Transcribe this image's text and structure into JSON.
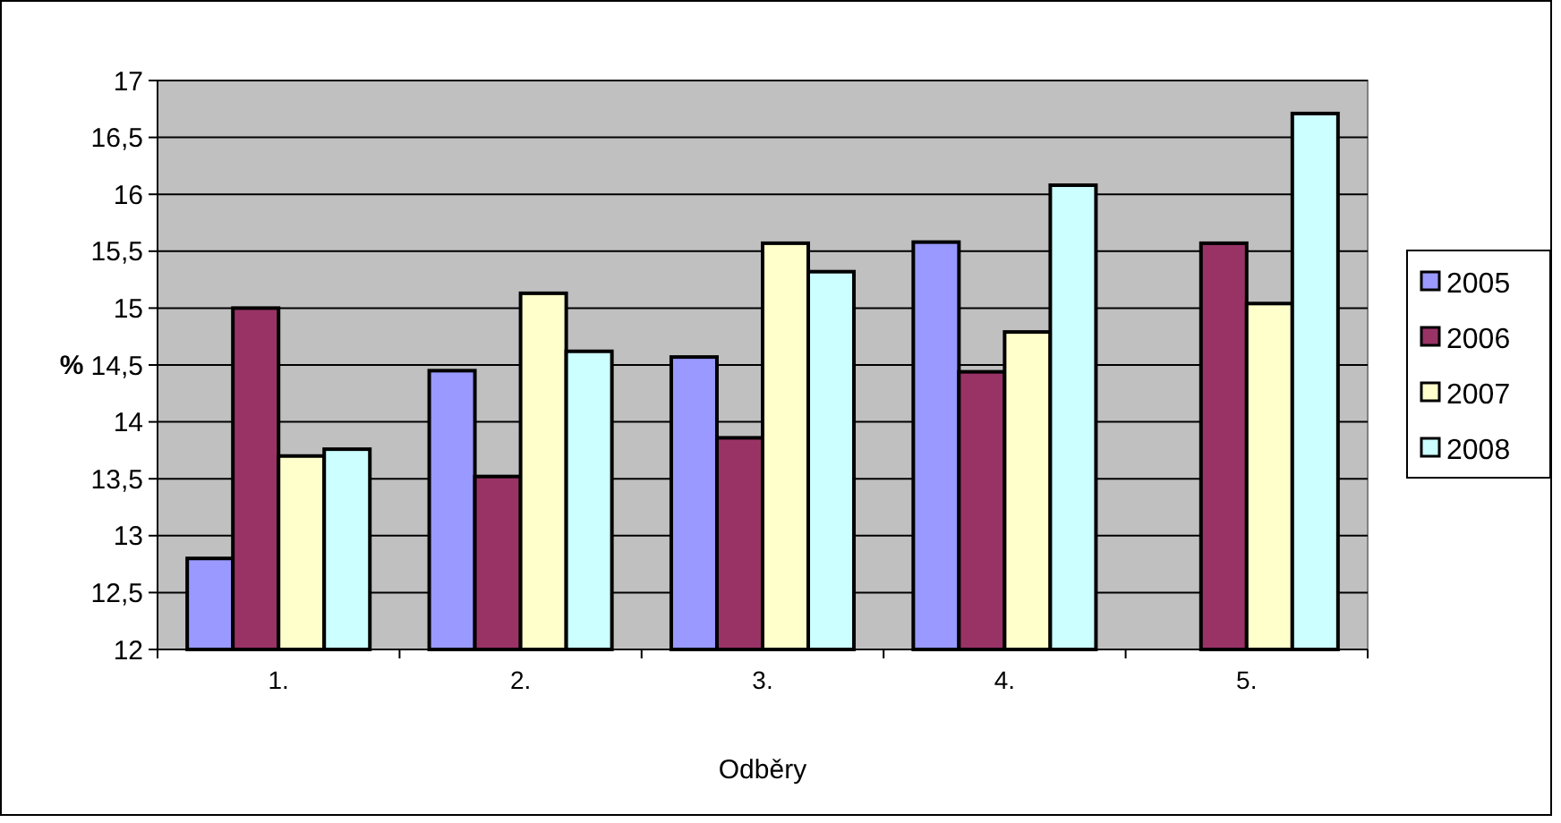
{
  "chart_data": {
    "type": "bar",
    "xlabel": "Odběry",
    "ylabel": "%",
    "categories": [
      "1.",
      "2.",
      "3.",
      "4.",
      "5."
    ],
    "series": [
      {
        "name": "2005",
        "color": "#9999ff",
        "values": [
          12.8,
          14.45,
          14.57,
          15.58,
          null
        ]
      },
      {
        "name": "2006",
        "color": "#993366",
        "values": [
          15.0,
          13.52,
          13.86,
          14.44,
          15.57
        ]
      },
      {
        "name": "2007",
        "color": "#ffffcc",
        "values": [
          13.7,
          15.13,
          15.57,
          14.79,
          15.04
        ]
      },
      {
        "name": "2008",
        "color": "#ccffff",
        "values": [
          13.76,
          14.62,
          15.32,
          16.08,
          16.71
        ]
      }
    ],
    "ylim": [
      12,
      17
    ],
    "yticks": [
      12,
      {
        "value": 12.5,
        "label": "12,5"
      },
      13,
      {
        "value": 13.5,
        "label": "13,5"
      },
      14,
      {
        "value": 14.5,
        "label": "14,5"
      },
      15,
      {
        "value": 15.5,
        "label": "15,5"
      },
      16,
      {
        "value": 16.5,
        "label": "16,5"
      },
      17
    ],
    "grid": "y",
    "legend": "right"
  }
}
